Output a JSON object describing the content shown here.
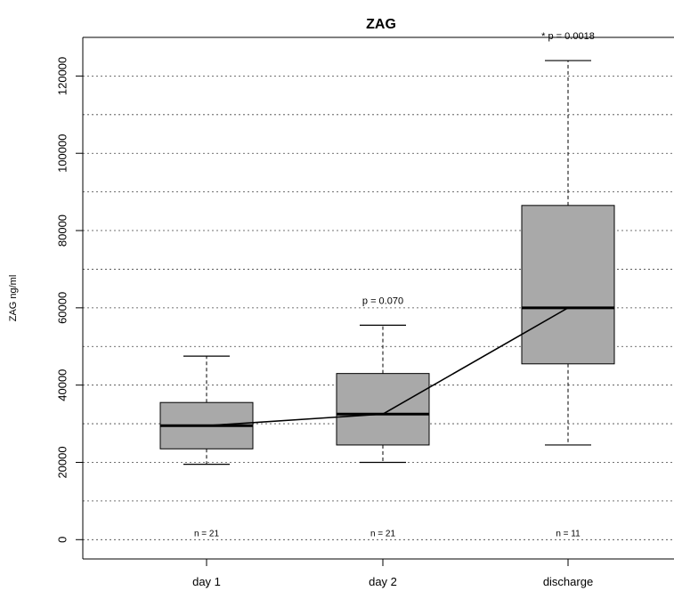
{
  "chart_data": {
    "type": "box",
    "title": "ZAG",
    "xlabel": "",
    "ylabel": "ZAG ng/ml",
    "ylim": [
      -5000,
      130000
    ],
    "yticks": [
      0,
      20000,
      40000,
      60000,
      80000,
      100000,
      120000
    ],
    "ytick_labels": [
      "0",
      "20000",
      "40000",
      "60000",
      "80000",
      "100000",
      "120000"
    ],
    "grid": true,
    "categories": [
      "day 1",
      "day 2",
      "discharge"
    ],
    "boxes": [
      {
        "min": 19500,
        "q1": 23500,
        "median": 29500,
        "q3": 35500,
        "max": 47500
      },
      {
        "min": 20000,
        "q1": 24500,
        "median": 32500,
        "q3": 43000,
        "max": 55500
      },
      {
        "min": 24500,
        "q1": 45500,
        "median": 60000,
        "q3": 86500,
        "max": 124000
      }
    ],
    "median_line": [
      29500,
      32500,
      60000
    ],
    "annotations": [
      {
        "category": "day 2",
        "text": "p = 0.070"
      },
      {
        "category": "discharge",
        "text": "* p = 0.0018"
      }
    ],
    "n_labels": [
      "n = 21",
      "n = 21",
      "n = 11"
    ]
  }
}
